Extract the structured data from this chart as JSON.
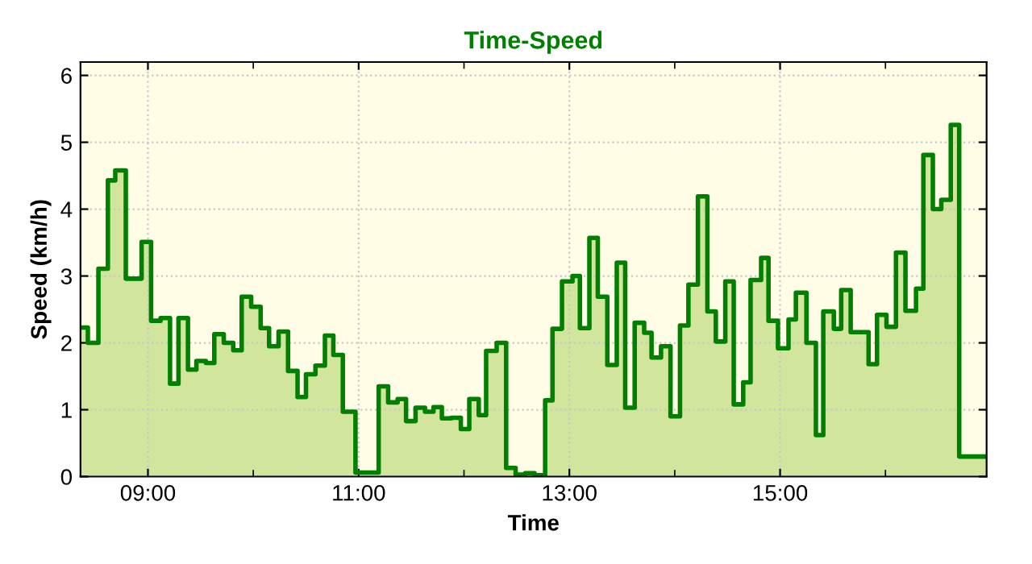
{
  "chart_data": {
    "type": "step",
    "title": "Time-Speed",
    "xlabel": "Time",
    "ylabel": "Speed (km/h)",
    "x": [
      8.36,
      8.43,
      8.53,
      8.62,
      8.69,
      8.79,
      8.94,
      9.03,
      9.12,
      9.21,
      9.29,
      9.38,
      9.46,
      9.55,
      9.63,
      9.72,
      9.81,
      9.89,
      9.98,
      10.07,
      10.15,
      10.24,
      10.33,
      10.42,
      10.5,
      10.59,
      10.68,
      10.76,
      10.85,
      10.97,
      11.19,
      11.28,
      11.37,
      11.45,
      11.54,
      11.63,
      11.71,
      11.79,
      11.88,
      11.97,
      12.05,
      12.14,
      12.21,
      12.31,
      12.4,
      12.49,
      12.58,
      12.67,
      12.77,
      12.84,
      12.93,
      13.03,
      13.1,
      13.19,
      13.27,
      13.36,
      13.45,
      13.53,
      13.62,
      13.71,
      13.78,
      13.87,
      13.96,
      14.05,
      14.13,
      14.22,
      14.31,
      14.39,
      14.48,
      14.56,
      14.65,
      14.72,
      14.82,
      14.89,
      14.98,
      15.08,
      15.15,
      15.25,
      15.34,
      15.41,
      15.51,
      15.58,
      15.67,
      15.84,
      15.92,
      16.01,
      16.1,
      16.19,
      16.29,
      16.36,
      16.45,
      16.53,
      16.62,
      16.7,
      16.96
    ],
    "series": [
      {
        "color": "#008000",
        "values": [
          2.23,
          2.0,
          3.11,
          4.43,
          4.58,
          2.96,
          3.51,
          2.33,
          2.37,
          1.39,
          2.37,
          1.6,
          1.73,
          1.7,
          2.13,
          2.0,
          1.89,
          2.69,
          2.54,
          2.22,
          1.95,
          2.17,
          1.58,
          1.19,
          1.53,
          1.66,
          2.11,
          1.82,
          0.97,
          0.06,
          1.35,
          1.11,
          1.16,
          0.83,
          1.03,
          0.97,
          1.04,
          0.87,
          0.88,
          0.71,
          1.16,
          0.92,
          1.88,
          2.0,
          0.13,
          0.03,
          0.05,
          0.02,
          1.14,
          2.21,
          2.92,
          3.0,
          2.22,
          3.57,
          2.69,
          1.67,
          3.2,
          1.03,
          2.3,
          2.15,
          1.78,
          1.95,
          0.9,
          2.26,
          2.87,
          4.19,
          2.47,
          2.02,
          2.92,
          1.08,
          1.41,
          2.94,
          3.27,
          2.33,
          1.92,
          2.35,
          2.75,
          2.0,
          0.62,
          2.47,
          2.21,
          2.79,
          2.16,
          1.68,
          2.42,
          2.24,
          3.35,
          2.48,
          2.81,
          4.81,
          4.0,
          4.14,
          5.26,
          0.3,
          0.3
        ]
      }
    ],
    "xlim": [
      8.36,
      16.96
    ],
    "ylim": [
      0,
      6.2
    ],
    "xticks": [
      {
        "value": 9,
        "label": "09:00"
      },
      {
        "value": 10,
        "label": null
      },
      {
        "value": 11,
        "label": "11:00"
      },
      {
        "value": 12,
        "label": null
      },
      {
        "value": 13,
        "label": "13:00"
      },
      {
        "value": 14,
        "label": null
      },
      {
        "value": 15,
        "label": "15:00"
      },
      {
        "value": 16,
        "label": null
      }
    ],
    "yticks": [
      0,
      1,
      2,
      3,
      4,
      5,
      6
    ],
    "grid": true,
    "line_style": "solid",
    "marker": "none"
  }
}
